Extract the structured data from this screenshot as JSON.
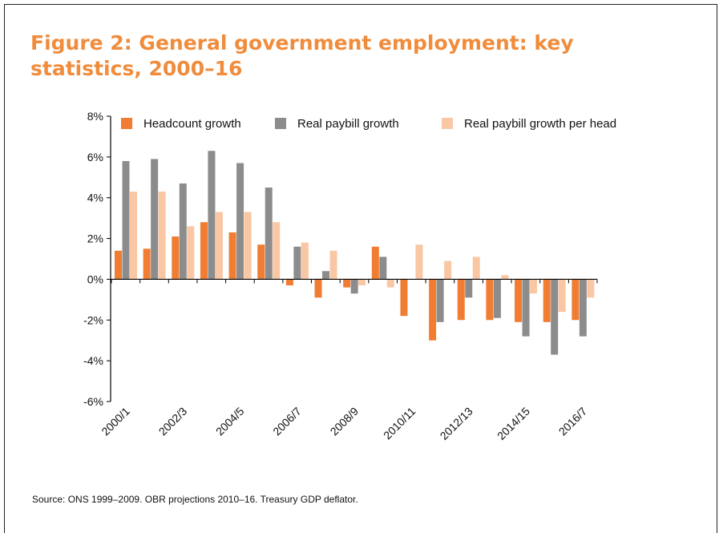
{
  "title": "Figure 2: General government employment: key statistics, 2000–16",
  "source": "Source: ONS 1999–2009. OBR projections 2010–16. Treasury GDP deflator.",
  "colors": {
    "headcount": "#f07d32",
    "paybill": "#8c8c8c",
    "per_head": "#f9c7a4",
    "title": "#f08c3c"
  },
  "chart_data": {
    "type": "bar",
    "categories": [
      "2000/1",
      "2001/2",
      "2002/3",
      "2003/4",
      "2004/5",
      "2005/6",
      "2006/7",
      "2007/8",
      "2008/9",
      "2009/10",
      "2010/11",
      "2011/12",
      "2012/13",
      "2013/14",
      "2014/15",
      "2015/16",
      "2016/7"
    ],
    "x_tick_labels": [
      "2000/1",
      "",
      "2002/3",
      "",
      "2004/5",
      "",
      "2006/7",
      "",
      "2008/9",
      "",
      "2010/11",
      "",
      "2012/13",
      "",
      "2014/15",
      "",
      "2016/7"
    ],
    "series": [
      {
        "name": "Headcount growth",
        "values": [
          1.4,
          1.5,
          2.1,
          2.8,
          2.3,
          1.7,
          -0.3,
          -0.9,
          -0.4,
          1.6,
          -1.8,
          -3.0,
          -2.0,
          -2.0,
          -2.1,
          -2.1,
          -2.0
        ]
      },
      {
        "name": "Real paybill growth",
        "values": [
          5.8,
          5.9,
          4.7,
          6.3,
          5.7,
          4.5,
          1.6,
          0.4,
          -0.7,
          1.1,
          0.0,
          -2.1,
          -0.9,
          -1.9,
          -2.8,
          -3.7,
          -2.8
        ]
      },
      {
        "name": "Real paybill growth per head",
        "values": [
          4.3,
          4.3,
          2.6,
          3.3,
          3.3,
          2.8,
          1.8,
          1.4,
          -0.3,
          -0.4,
          1.7,
          0.9,
          1.1,
          0.2,
          -0.7,
          -1.6,
          -0.9
        ]
      }
    ],
    "ylim": [
      -6,
      8
    ],
    "y_ticks": [
      8,
      6,
      4,
      2,
      0,
      -2,
      -4,
      -6
    ],
    "y_tick_labels": [
      "8%",
      "6%",
      "4%",
      "2%",
      "0%",
      "-2%",
      "-4%",
      "-6%"
    ],
    "legend_position": "top",
    "grid": false,
    "xlabel": "",
    "ylabel": ""
  }
}
